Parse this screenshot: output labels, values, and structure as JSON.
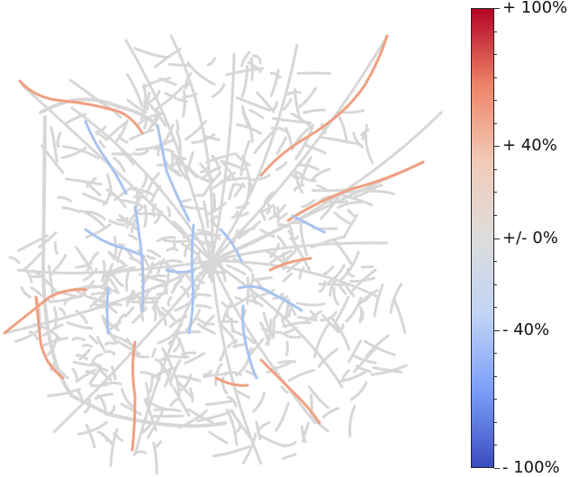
{
  "colorbar": {
    "colors": [
      "#3b4cc0",
      "#7b9ff9",
      "#c0d4f5",
      "#dddcdc",
      "#f2cbb7",
      "#ee8468",
      "#b40426"
    ],
    "ticks": [
      {
        "value": 100,
        "label": "+ 100%"
      },
      {
        "value": 40,
        "label": "+ 40%"
      },
      {
        "value": 0,
        "label": "+/- 0%"
      },
      {
        "value": -40,
        "label": "- 40%"
      },
      {
        "value": -100,
        "label": "- 100%"
      }
    ],
    "minor_step": 10,
    "range": [
      -100,
      100
    ]
  },
  "map": {
    "base_color": "#d7d7d7",
    "increase_color": "#f0a081",
    "decrease_color": "#a8c3f0"
  }
}
